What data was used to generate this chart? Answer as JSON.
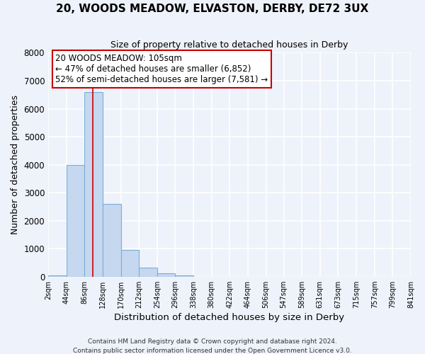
{
  "title": "20, WOODS MEADOW, ELVASTON, DERBY, DE72 3UX",
  "subtitle": "Size of property relative to detached houses in Derby",
  "xlabel": "Distribution of detached houses by size in Derby",
  "ylabel": "Number of detached properties",
  "bin_edges": [
    2,
    44,
    86,
    128,
    170,
    212,
    254,
    296,
    338,
    380,
    422,
    464,
    506,
    547,
    589,
    631,
    673,
    715,
    757,
    799,
    841
  ],
  "bin_labels": [
    "2sqm",
    "44sqm",
    "86sqm",
    "128sqm",
    "170sqm",
    "212sqm",
    "254sqm",
    "296sqm",
    "338sqm",
    "380sqm",
    "422sqm",
    "464sqm",
    "506sqm",
    "547sqm",
    "589sqm",
    "631sqm",
    "673sqm",
    "715sqm",
    "757sqm",
    "799sqm",
    "841sqm"
  ],
  "bar_heights": [
    50,
    4000,
    6600,
    2600,
    950,
    330,
    120,
    50,
    0,
    0,
    0,
    0,
    0,
    0,
    0,
    0,
    0,
    0,
    0,
    0
  ],
  "bar_color": "#c5d8f0",
  "bar_edge_color": "#7bafd4",
  "background_color": "#eef2fb",
  "grid_color": "#ffffff",
  "ylim": [
    0,
    8000
  ],
  "yticks": [
    0,
    1000,
    2000,
    3000,
    4000,
    5000,
    6000,
    7000,
    8000
  ],
  "property_line_x": 105,
  "property_line_color": "#cc0000",
  "annotation_line1": "20 WOODS MEADOW: 105sqm",
  "annotation_line2": "← 47% of detached houses are smaller (6,852)",
  "annotation_line3": "52% of semi-detached houses are larger (7,581) →",
  "annotation_box_color": "#ffffff",
  "annotation_box_edgecolor": "#cc0000",
  "footer_line1": "Contains HM Land Registry data © Crown copyright and database right 2024.",
  "footer_line2": "Contains public sector information licensed under the Open Government Licence v3.0."
}
